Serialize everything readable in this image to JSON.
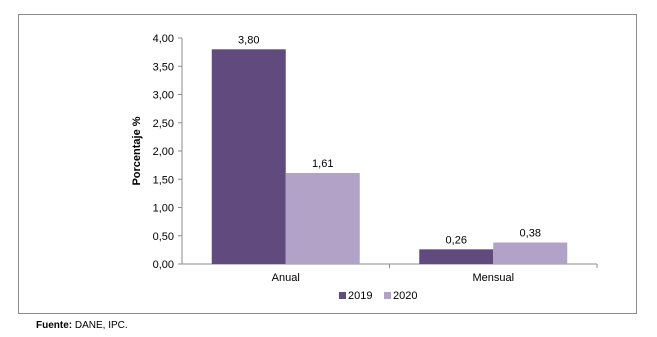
{
  "chart_data": {
    "type": "bar",
    "categories": [
      "Anual",
      "Mensual"
    ],
    "series": [
      {
        "name": "2019",
        "values": [
          3.8,
          0.26
        ],
        "labels": [
          "3,80",
          "0,26"
        ],
        "color": "#614a7d"
      },
      {
        "name": "2020",
        "values": [
          1.61,
          0.38
        ],
        "labels": [
          "1,61",
          "0,38"
        ],
        "color": "#b3a2c7"
      }
    ],
    "ylabel": "Porcentaje %",
    "ylim": [
      0,
      4
    ],
    "yticks": [
      "0,00",
      "0,50",
      "1,00",
      "1,50",
      "2,00",
      "2,50",
      "3,00",
      "3,50",
      "4,00"
    ],
    "grid": false,
    "legend_position": "bottom"
  },
  "source": {
    "label": "Fuente:",
    "text": " DANE, IPC."
  }
}
